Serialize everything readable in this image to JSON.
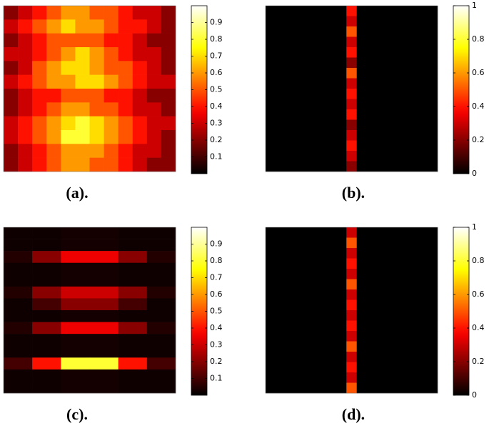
{
  "chart_data": [
    {
      "type": "heatmap",
      "label": "(a).",
      "colormap": "hot",
      "z": [
        [
          0.2,
          0.3,
          0.4,
          0.5,
          0.6,
          0.6,
          0.5,
          0.5,
          0.4,
          0.3,
          0.3,
          0.2
        ],
        [
          0.3,
          0.4,
          0.5,
          0.6,
          0.7,
          0.6,
          0.6,
          0.5,
          0.4,
          0.4,
          0.3,
          0.2
        ],
        [
          0.2,
          0.3,
          0.4,
          0.5,
          0.5,
          0.5,
          0.5,
          0.4,
          0.4,
          0.3,
          0.2,
          0.2
        ],
        [
          0.3,
          0.3,
          0.4,
          0.5,
          0.6,
          0.7,
          0.6,
          0.5,
          0.4,
          0.3,
          0.3,
          0.2
        ],
        [
          0.2,
          0.3,
          0.5,
          0.6,
          0.7,
          0.7,
          0.6,
          0.5,
          0.5,
          0.4,
          0.3,
          0.2
        ],
        [
          0.3,
          0.4,
          0.5,
          0.6,
          0.6,
          0.7,
          0.7,
          0.6,
          0.5,
          0.4,
          0.3,
          0.3
        ],
        [
          0.2,
          0.3,
          0.4,
          0.4,
          0.5,
          0.5,
          0.5,
          0.4,
          0.4,
          0.3,
          0.2,
          0.2
        ],
        [
          0.2,
          0.3,
          0.4,
          0.5,
          0.6,
          0.6,
          0.5,
          0.5,
          0.4,
          0.3,
          0.3,
          0.2
        ],
        [
          0.3,
          0.4,
          0.5,
          0.6,
          0.7,
          0.8,
          0.7,
          0.6,
          0.5,
          0.4,
          0.3,
          0.3
        ],
        [
          0.3,
          0.4,
          0.5,
          0.6,
          0.8,
          0.8,
          0.7,
          0.6,
          0.5,
          0.4,
          0.3,
          0.2
        ],
        [
          0.2,
          0.3,
          0.4,
          0.5,
          0.6,
          0.6,
          0.6,
          0.5,
          0.4,
          0.3,
          0.3,
          0.2
        ],
        [
          0.2,
          0.3,
          0.4,
          0.5,
          0.6,
          0.6,
          0.5,
          0.5,
          0.4,
          0.3,
          0.2,
          0.2
        ]
      ],
      "clim": [
        0,
        1
      ],
      "cticks": [
        0.1,
        0.2,
        0.3,
        0.4,
        0.5,
        0.6,
        0.7,
        0.8,
        0.9
      ]
    },
    {
      "type": "heatmap",
      "label": "(b).",
      "colormap": "hot",
      "xbins": [
        0,
        0.47,
        0.53,
        1
      ],
      "z": [
        [
          0,
          0.4,
          0
        ],
        [
          0,
          0.3,
          0
        ],
        [
          0,
          0.5,
          0
        ],
        [
          0,
          0.3,
          0
        ],
        [
          0,
          0.4,
          0
        ],
        [
          0,
          0.2,
          0
        ],
        [
          0,
          0.5,
          0
        ],
        [
          0,
          0.3,
          0
        ],
        [
          0,
          0.4,
          0
        ],
        [
          0,
          0.3,
          0
        ],
        [
          0,
          0.4,
          0
        ],
        [
          0,
          0.2,
          0
        ],
        [
          0,
          0.3,
          0
        ],
        [
          0,
          0.4,
          0
        ],
        [
          0,
          0.3,
          0
        ],
        [
          0,
          0.2,
          0
        ]
      ],
      "clim": [
        0,
        1
      ],
      "cticks": [
        0,
        0.2,
        0.4,
        0.6,
        0.8,
        1
      ]
    },
    {
      "type": "heatmap",
      "label": "(c).",
      "colormap": "hot",
      "z": [
        [
          0.02,
          0.02,
          0.03,
          0.03,
          0.02,
          0.02
        ],
        [
          0.02,
          0.02,
          0.03,
          0.03,
          0.02,
          0.02
        ],
        [
          0.05,
          0.2,
          0.35,
          0.35,
          0.2,
          0.05
        ],
        [
          0.02,
          0.02,
          0.03,
          0.03,
          0.02,
          0.02
        ],
        [
          0.02,
          0.02,
          0.03,
          0.03,
          0.02,
          0.02
        ],
        [
          0.05,
          0.2,
          0.3,
          0.3,
          0.2,
          0.05
        ],
        [
          0.02,
          0.1,
          0.2,
          0.2,
          0.1,
          0.02
        ],
        [
          0.02,
          0.02,
          0.03,
          0.03,
          0.02,
          0.02
        ],
        [
          0.05,
          0.2,
          0.35,
          0.35,
          0.2,
          0.05
        ],
        [
          0.02,
          0.02,
          0.03,
          0.03,
          0.02,
          0.02
        ],
        [
          0.02,
          0.02,
          0.03,
          0.03,
          0.02,
          0.02
        ],
        [
          0.1,
          0.4,
          0.8,
          0.8,
          0.4,
          0.1
        ],
        [
          0.02,
          0.02,
          0.03,
          0.03,
          0.02,
          0.02
        ],
        [
          0.02,
          0.02,
          0.03,
          0.03,
          0.02,
          0.02
        ]
      ],
      "clim": [
        0,
        1
      ],
      "cticks": [
        0.1,
        0.2,
        0.3,
        0.4,
        0.5,
        0.6,
        0.7,
        0.8,
        0.9
      ]
    },
    {
      "type": "heatmap",
      "label": "(d).",
      "colormap": "hot",
      "xbins": [
        0,
        0.47,
        0.53,
        1
      ],
      "z": [
        [
          0,
          0.3,
          0
        ],
        [
          0,
          0.5,
          0
        ],
        [
          0,
          0.3,
          0
        ],
        [
          0,
          0.4,
          0
        ],
        [
          0,
          0.3,
          0
        ],
        [
          0,
          0.5,
          0
        ],
        [
          0,
          0.3,
          0
        ],
        [
          0,
          0.4,
          0
        ],
        [
          0,
          0.3,
          0
        ],
        [
          0,
          0.4,
          0
        ],
        [
          0,
          0.3,
          0
        ],
        [
          0,
          0.5,
          0
        ],
        [
          0,
          0.3,
          0
        ],
        [
          0,
          0.4,
          0
        ],
        [
          0,
          0.3,
          0
        ],
        [
          0,
          0.5,
          0
        ]
      ],
      "clim": [
        0,
        1
      ],
      "cticks": [
        0,
        0.2,
        0.4,
        0.6,
        0.8,
        1
      ]
    }
  ]
}
